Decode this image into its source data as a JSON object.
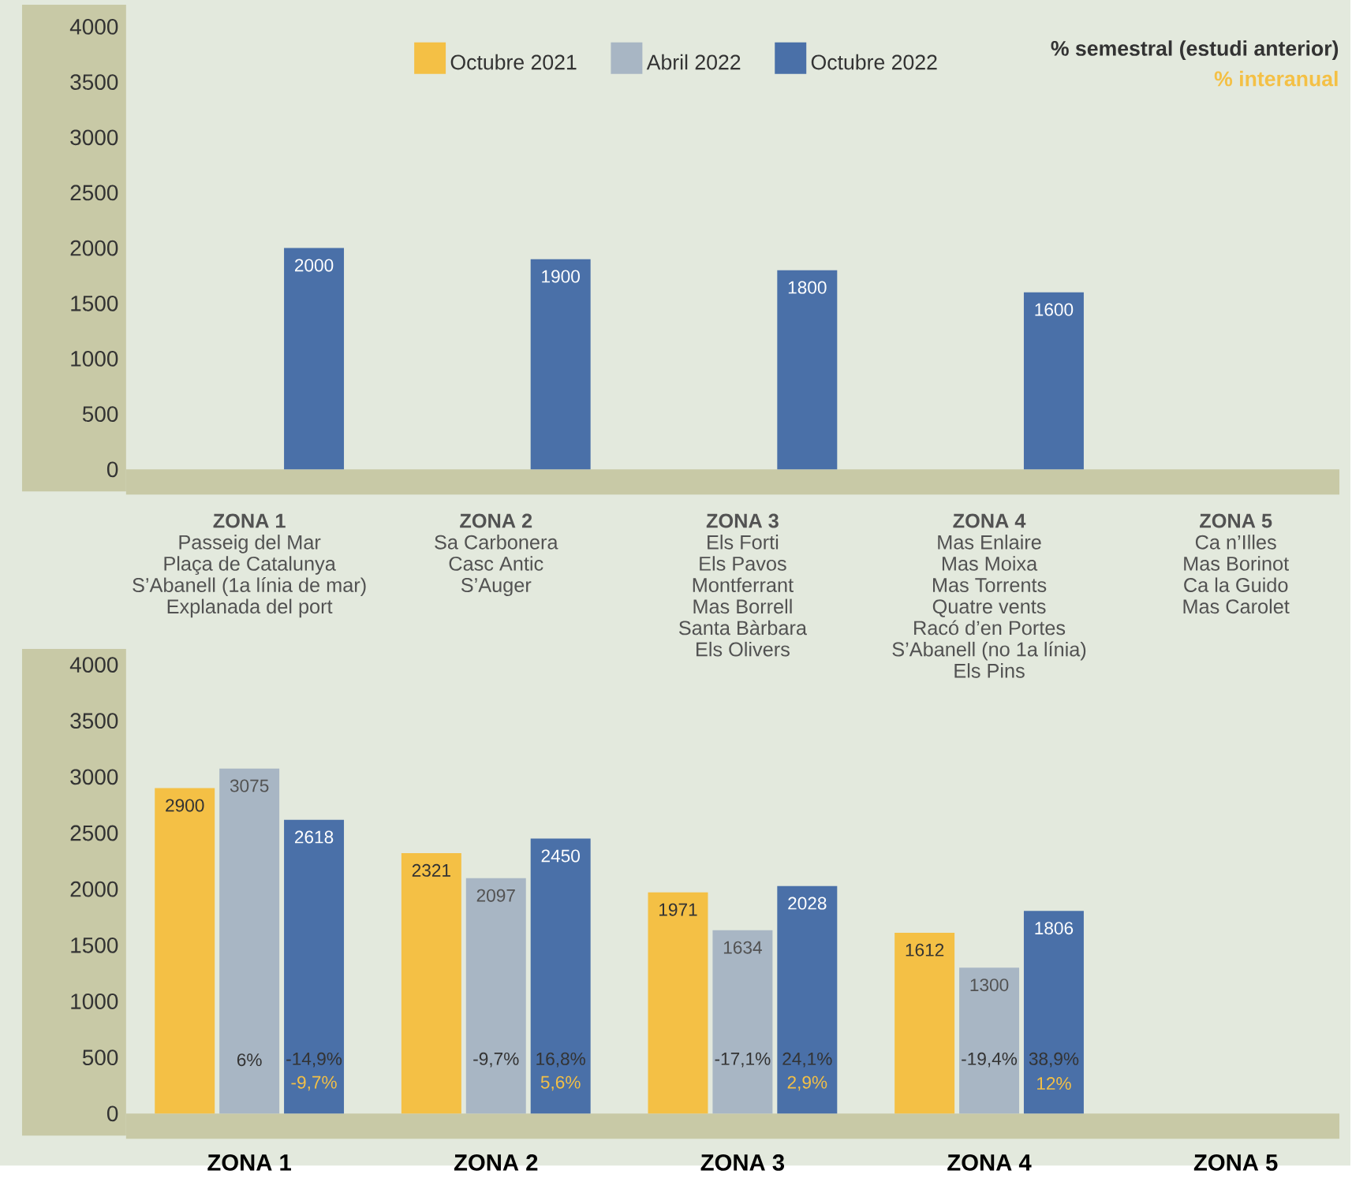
{
  "chart_data": [
    {
      "type": "bar",
      "categories": [
        "**ZONA 1**\nPasseig del Mar\nPlaça de Catalunya\nS’Abanell  (1a línia de mar)\nExplanada del port",
        "**ZONA 2**\nSa Carbonera\nCasc Antic\nS’Auger",
        "**ZONA 3**\nEls Forti\nEls Pavos\nMontferrant\nMas Borrell\nSanta Bàrbara\nEls Olivers",
        "**ZONA 4**\nMas Enlaire\nMas Moixa\nMas Torrents\nQuatre vents\nRacó d’en Portes\nS’Abanell (no 1a línia)\nEls Pins",
        "**ZONA 5**\nCa n’Illes\nMas Borinot\nCa la Guido\nMas Carolet"
      ],
      "series": [
        {
          "name": "Octubre 2021",
          "color": "#f4c045",
          "values": [
            0,
            0,
            0,
            0,
            0
          ]
        },
        {
          "name": "Abril 2022",
          "color": "#a8b6c4",
          "values": [
            0,
            0,
            0,
            0,
            0
          ]
        },
        {
          "name": "Octubre 2022",
          "color": "#4a70a8",
          "values": [
            2000,
            1900,
            1800,
            1600,
            0
          ],
          "value_labels": [
            "2000",
            "1900",
            "1800",
            "1600",
            null
          ]
        }
      ],
      "ylim": [
        0,
        4000
      ],
      "yticks": [
        0,
        500,
        1000,
        1500,
        2000,
        2500,
        3000,
        3500,
        4000
      ],
      "legend": "top",
      "annotations": [
        "% semestral (estudi anterior)",
        "% interanual"
      ]
    },
    {
      "type": "bar",
      "categories": [
        "ZONA 1",
        "ZONA 2",
        "ZONA 3",
        "ZONA 4",
        "ZONA 5"
      ],
      "series": [
        {
          "color": "#f4c045",
          "values": [
            2900,
            2321,
            1971,
            1612,
            0
          ],
          "value_labels": [
            "2900",
            "2321",
            "1971",
            "1612",
            null
          ]
        },
        {
          "color": "#a8b6c4",
          "values": [
            3075,
            2097,
            1634,
            1300,
            0
          ],
          "value_labels": [
            "3075",
            "2097",
            "1634",
            "1300",
            null
          ]
        },
        {
          "color": "#4a70a8",
          "values": [
            2618,
            2450,
            2028,
            1806,
            0
          ],
          "value_labels": [
            "2618",
            "2450",
            "2028",
            "1806",
            null
          ]
        }
      ],
      "ylim": [
        0,
        4000
      ],
      "yticks": [
        0,
        500,
        1000,
        1500,
        2000,
        2500,
        3000,
        3500,
        4000
      ],
      "annotations": [
        "6%",
        "-14,9%",
        "-9,7%",
        "-9,7%",
        "16,8%",
        "5,6%",
        "-17,1%",
        "24,1%",
        "2,9%",
        "-19,4%",
        "38,9%",
        "12%"
      ]
    }
  ]
}
